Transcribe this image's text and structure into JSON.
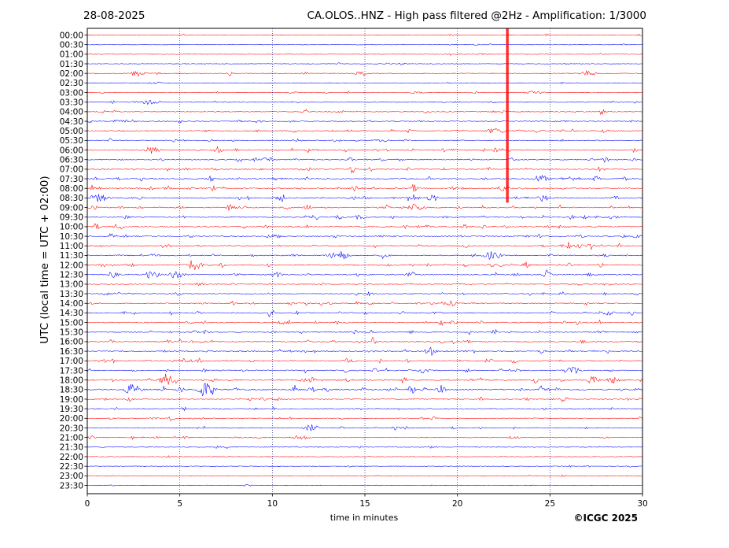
{
  "header": {
    "date": "28-08-2025",
    "title": "CA.OLOS..HNZ - High pass filtered @2Hz - Amplification: 1/3000"
  },
  "footer": {
    "copyright": "©ICGC 2025"
  },
  "chart_data": {
    "type": "line",
    "title": "CA.OLOS..HNZ - High pass filtered @2Hz - Amplification: 1/3000",
    "xlabel": "time in minutes",
    "ylabel": "UTC (local time = UTC + 02:00)",
    "xlim": [
      0,
      30
    ],
    "x_ticks": [
      0,
      5,
      10,
      15,
      20,
      25,
      30
    ],
    "x_grid": "dotted vertical lines every 5 minutes",
    "row_labels": [
      "00:00",
      "00:30",
      "01:00",
      "01:30",
      "02:00",
      "02:30",
      "03:00",
      "03:30",
      "04:00",
      "04:30",
      "05:00",
      "05:30",
      "06:00",
      "06:30",
      "07:00",
      "07:30",
      "08:00",
      "08:30",
      "09:00",
      "09:30",
      "10:00",
      "10:30",
      "11:00",
      "11:30",
      "12:00",
      "12:30",
      "13:00",
      "13:30",
      "14:00",
      "14:30",
      "15:00",
      "15:30",
      "16:00",
      "16:30",
      "17:00",
      "17:30",
      "18:00",
      "18:30",
      "19:00",
      "19:30",
      "20:00",
      "20:30",
      "21:00",
      "21:30",
      "22:00",
      "22:30",
      "23:00",
      "23:30"
    ],
    "colors": [
      "#ff0000",
      "#0000ff"
    ],
    "color_pattern": "rows alternate red (even index) and blue (odd index)",
    "series_activity": [
      0.1,
      0.1,
      0.1,
      0.1,
      0.2,
      0.1,
      0.2,
      0.3,
      0.3,
      0.4,
      0.4,
      0.4,
      0.5,
      0.5,
      0.5,
      0.5,
      0.6,
      0.6,
      0.6,
      0.5,
      0.5,
      0.5,
      0.5,
      0.5,
      0.6,
      0.6,
      0.4,
      0.4,
      0.5,
      0.5,
      0.5,
      0.5,
      0.5,
      0.5,
      0.5,
      0.5,
      0.7,
      0.8,
      0.4,
      0.3,
      0.3,
      0.3,
      0.3,
      0.2,
      0.1,
      0.1,
      0.1,
      0.1
    ],
    "events": [
      {
        "row": "02:00",
        "minute": 2.7,
        "amplitude": 0.6
      },
      {
        "row": "02:00",
        "minute": 27.0,
        "amplitude": 0.5
      },
      {
        "row": "03:00",
        "minute": 24.2,
        "amplitude": 0.5
      },
      {
        "row": "03:30",
        "minute": 3.4,
        "amplitude": 0.8
      },
      {
        "row": "05:00",
        "minute": 22.0,
        "amplitude": 0.6
      },
      {
        "row": "06:00",
        "minute": 3.5,
        "amplitude": 0.8
      },
      {
        "row": "07:30",
        "minute": 24.5,
        "amplitude": 0.8
      },
      {
        "row": "08:00",
        "minute": 22.5,
        "amplitude": 0.6
      },
      {
        "row": "08:30",
        "minute": 0.7,
        "amplitude": 0.8
      },
      {
        "row": "08:30",
        "minute": 17.5,
        "amplitude": 0.7
      },
      {
        "row": "09:00",
        "minute": 17.8,
        "amplitude": 0.8
      },
      {
        "row": "11:30",
        "minute": 13.8,
        "amplitude": 0.7
      },
      {
        "row": "11:30",
        "minute": 21.8,
        "amplitude": 0.8
      },
      {
        "row": "12:00",
        "minute": 5.8,
        "amplitude": 1.0
      },
      {
        "row": "12:30",
        "minute": 4.8,
        "amplitude": 0.8
      },
      {
        "row": "16:30",
        "minute": 18.5,
        "amplitude": 0.5
      },
      {
        "row": "17:30",
        "minute": 26.2,
        "amplitude": 1.0
      },
      {
        "row": "18:00",
        "minute": 4.3,
        "amplitude": 1.0
      },
      {
        "row": "18:00",
        "minute": 28.5,
        "amplitude": 0.6
      },
      {
        "row": "18:30",
        "minute": 2.5,
        "amplitude": 1.0
      },
      {
        "row": "18:30",
        "minute": 6.4,
        "amplitude": 1.5
      },
      {
        "row": "20:30",
        "minute": 12.1,
        "amplitude": 0.7
      },
      {
        "row": "21:00",
        "minute": 11.5,
        "amplitude": 0.5
      }
    ],
    "spike": {
      "row_start": "00:00",
      "row_end": "08:30",
      "minute": 22.7
    }
  }
}
